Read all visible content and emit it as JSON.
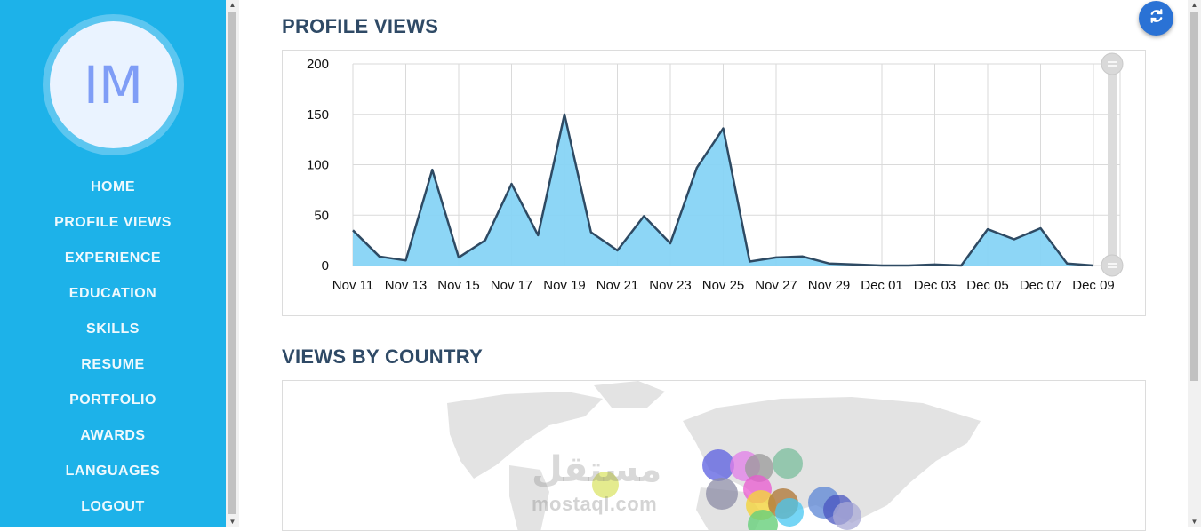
{
  "sidebar": {
    "avatar_initials": "IM",
    "nav": [
      "HOME",
      "PROFILE VIEWS",
      "EXPERIENCE",
      "EDUCATION",
      "SKILLS",
      "RESUME",
      "PORTFOLIO",
      "AWARDS",
      "LANGUAGES",
      "LOGOUT"
    ]
  },
  "sections": {
    "profile_views_title": "PROFILE VIEWS",
    "country_title": "VIEWS BY COUNTRY"
  },
  "watermark": {
    "arabic": "مستقل",
    "latin": "mostaql.com"
  },
  "icons": {
    "refresh": "refresh-icon"
  },
  "colors": {
    "sidebar": "#1db2e9",
    "accent": "#2a72d5",
    "area_fill": "#87d4f5",
    "line": "#2e4a63"
  },
  "chart_data": {
    "type": "area",
    "title": "",
    "xlabel": "",
    "ylabel": "",
    "ylim": [
      0,
      200
    ],
    "yticks": [
      0,
      50,
      100,
      150,
      200
    ],
    "x_tick_labels": [
      "Nov 11",
      "Nov 13",
      "Nov 15",
      "Nov 17",
      "Nov 19",
      "Nov 21",
      "Nov 23",
      "Nov 25",
      "Nov 27",
      "Nov 29",
      "Dec 01",
      "Dec 03",
      "Dec 05",
      "Dec 07",
      "Dec 09"
    ],
    "x": [
      "Nov 11",
      "Nov 12",
      "Nov 13",
      "Nov 14",
      "Nov 15",
      "Nov 16",
      "Nov 17",
      "Nov 18",
      "Nov 19",
      "Nov 20",
      "Nov 21",
      "Nov 22",
      "Nov 23",
      "Nov 24",
      "Nov 25",
      "Nov 26",
      "Nov 27",
      "Nov 28",
      "Nov 29",
      "Nov 30",
      "Dec 01",
      "Dec 02",
      "Dec 03",
      "Dec 04",
      "Dec 05",
      "Dec 06",
      "Dec 07",
      "Dec 08",
      "Dec 09"
    ],
    "series": [
      {
        "values": [
          35,
          9,
          5,
          95,
          8,
          25,
          81,
          30,
          150,
          33,
          15,
          49,
          22,
          97,
          136,
          4,
          8,
          9,
          2,
          1,
          0,
          0,
          1,
          0,
          36,
          26,
          37,
          2,
          0
        ]
      }
    ],
    "grid": true,
    "legend": "none",
    "range_slider": {
      "from": 200,
      "to": 0
    }
  }
}
